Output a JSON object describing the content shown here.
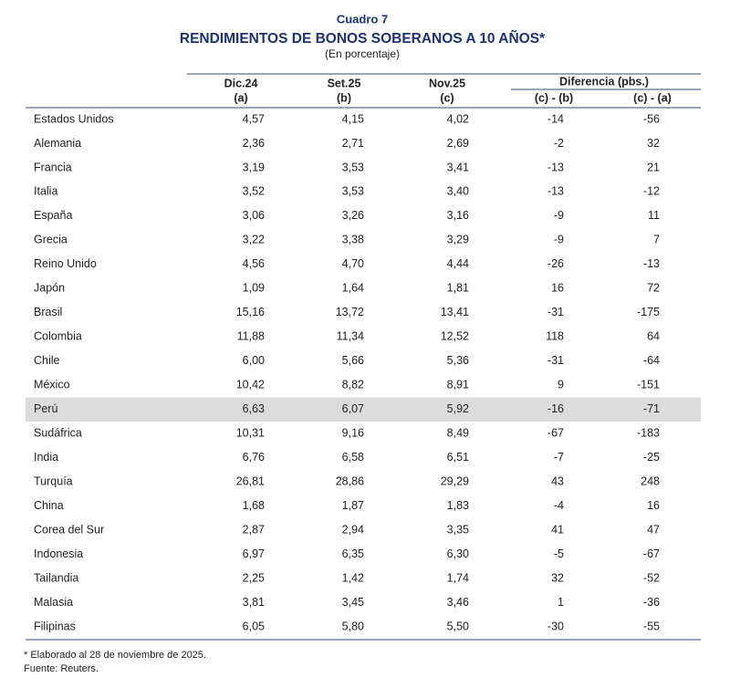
{
  "header": {
    "label": "Cuadro 7",
    "title": "RENDIMIENTOS DE BONOS SOBERANOS A 10 AÑOS*",
    "subtitle": "(En porcentaje)"
  },
  "table": {
    "columns": [
      {
        "label": "Dic.24",
        "sub": "(a)"
      },
      {
        "label": "Set.25",
        "sub": "(b)"
      },
      {
        "label": "Nov.25",
        "sub": "(c)"
      }
    ],
    "group": {
      "label": "Diferencia (pbs.)",
      "columns": [
        "(c) - (b)",
        "(c) - (a)"
      ]
    },
    "rows": [
      {
        "cells": [
          "Estados Unidos",
          "4,57",
          "4,15",
          "4,02",
          "-14",
          "-56"
        ]
      },
      {
        "cells": [
          "Alemania",
          "2,36",
          "2,71",
          "2,69",
          "-2",
          "32"
        ]
      },
      {
        "cells": [
          "Francia",
          "3,19",
          "3,53",
          "3,41",
          "-13",
          "21"
        ]
      },
      {
        "cells": [
          "Italia",
          "3,52",
          "3,53",
          "3,40",
          "-13",
          "-12"
        ]
      },
      {
        "cells": [
          "España",
          "3,06",
          "3,26",
          "3,16",
          "-9",
          "11"
        ]
      },
      {
        "cells": [
          "Grecia",
          "3,22",
          "3,38",
          "3,29",
          "-9",
          "7"
        ]
      },
      {
        "cells": [
          "Reino Unido",
          "4,56",
          "4,70",
          "4,44",
          "-26",
          "-13"
        ]
      },
      {
        "cells": [
          "Japón",
          "1,09",
          "1,64",
          "1,81",
          "16",
          "72"
        ]
      },
      {
        "cells": [
          "Brasil",
          "15,16",
          "13,72",
          "13,41",
          "-31",
          "-175"
        ]
      },
      {
        "cells": [
          "Colombia",
          "11,88",
          "11,34",
          "12,52",
          "118",
          "64"
        ]
      },
      {
        "cells": [
          "Chile",
          "6,00",
          "5,66",
          "5,36",
          "-31",
          "-64"
        ]
      },
      {
        "cells": [
          "México",
          "10,42",
          "8,82",
          "8,91",
          "9",
          "-151"
        ]
      },
      {
        "cells": [
          "Perú",
          "6,63",
          "6,07",
          "5,92",
          "-16",
          "-71"
        ],
        "highlighted": true
      },
      {
        "cells": [
          "Sudáfrica",
          "10,31",
          "9,16",
          "8,49",
          "-67",
          "-183"
        ]
      },
      {
        "cells": [
          "India",
          "6,76",
          "6,58",
          "6,51",
          "-7",
          "-25"
        ]
      },
      {
        "cells": [
          "Turquía",
          "26,81",
          "28,86",
          "29,29",
          "43",
          "248"
        ]
      },
      {
        "cells": [
          "China",
          "1,68",
          "1,87",
          "1,83",
          "-4",
          "16"
        ]
      },
      {
        "cells": [
          "Corea del Sur",
          "2,87",
          "2,94",
          "3,35",
          "41",
          "47"
        ]
      },
      {
        "cells": [
          "Indonesia",
          "6,97",
          "6,35",
          "6,30",
          "-5",
          "-67"
        ]
      },
      {
        "cells": [
          "Tailandia",
          "2,25",
          "1,42",
          "1,74",
          "32",
          "-52"
        ]
      },
      {
        "cells": [
          "Malasia",
          "3,81",
          "3,45",
          "3,46",
          "1",
          "-36"
        ]
      },
      {
        "cells": [
          "Filipinas",
          "6,05",
          "5,80",
          "5,50",
          "-30",
          "-55"
        ]
      }
    ]
  },
  "notes": [
    "* Elaborado al 28 de noviembre de 2025.",
    "Fuente: Reuters."
  ]
}
